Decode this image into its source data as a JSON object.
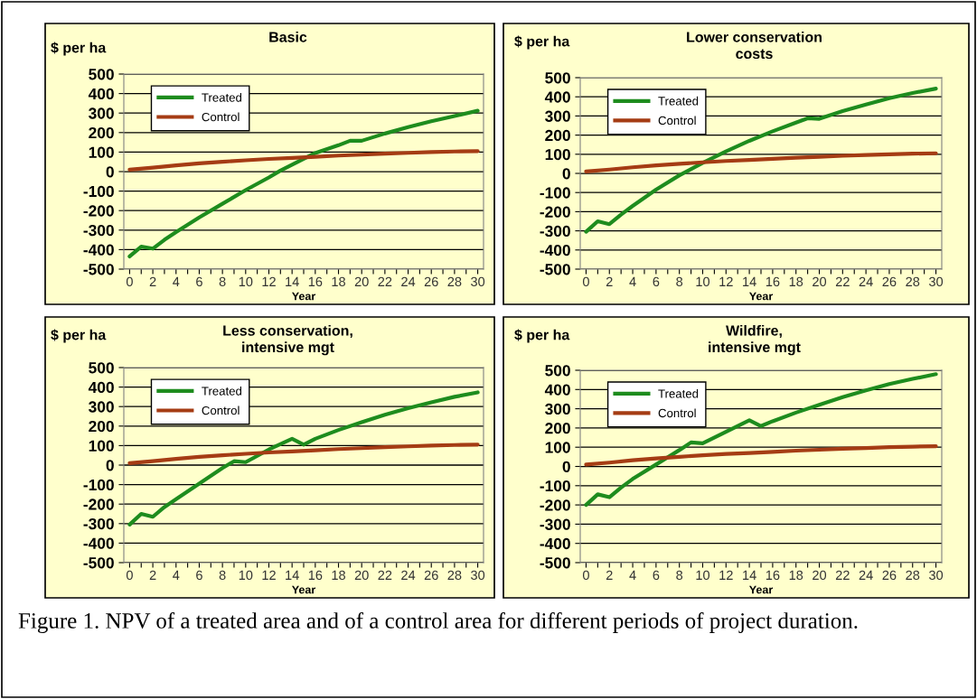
{
  "chart_data": [
    {
      "type": "line",
      "title": "Basic",
      "ylabel": "$ per ha",
      "xlabel": "Year",
      "series": [
        {
          "name": "Treated",
          "color": "#1e8c1e",
          "x": [
            0,
            1,
            2,
            3,
            4,
            6,
            8,
            10,
            12,
            13,
            14,
            16,
            18,
            19,
            20,
            22,
            24,
            26,
            28,
            30
          ],
          "values": [
            -435,
            -385,
            -395,
            -350,
            -310,
            -235,
            -165,
            -95,
            -30,
            5,
            35,
            95,
            135,
            158,
            158,
            195,
            228,
            258,
            285,
            312
          ]
        },
        {
          "name": "Control",
          "color": "#a53c14",
          "x": [
            0,
            2,
            4,
            6,
            8,
            10,
            12,
            14,
            16,
            18,
            20,
            22,
            24,
            26,
            28,
            30
          ],
          "values": [
            10,
            20,
            32,
            42,
            50,
            58,
            65,
            70,
            76,
            82,
            87,
            92,
            96,
            100,
            103,
            105
          ]
        }
      ],
      "xlim": [
        -0.5,
        30.5
      ],
      "xticks": [
        0,
        {
          "value": 1,
          "label": null
        },
        2,
        {
          "value": 3,
          "label": null
        },
        4,
        {
          "value": 5,
          "label": null
        },
        6,
        {
          "value": 7,
          "label": null
        },
        8,
        {
          "value": 9,
          "label": null
        },
        10,
        {
          "value": 11,
          "label": null
        },
        12,
        {
          "value": 13,
          "label": null
        },
        14,
        {
          "value": 15,
          "label": null
        },
        16,
        {
          "value": 17,
          "label": null
        },
        18,
        {
          "value": 19,
          "label": null
        },
        20,
        {
          "value": 21,
          "label": null
        },
        22,
        {
          "value": 23,
          "label": null
        },
        24,
        {
          "value": 25,
          "label": null
        },
        26,
        {
          "value": 27,
          "label": null
        },
        28,
        {
          "value": 29,
          "label": null
        },
        30
      ],
      "ylim": [
        -500,
        500
      ],
      "yticks": [
        -500,
        -400,
        -300,
        -200,
        -100,
        0,
        100,
        200,
        300,
        400,
        500
      ],
      "grid": "y",
      "legend": "top left",
      "line_style": "solid"
    },
    {
      "type": "line",
      "title": "Lower conservation\ncosts",
      "ylabel": "$ per ha",
      "xlabel": "Year",
      "series": [
        {
          "name": "Treated",
          "color": "#1e8c1e",
          "x": [
            0,
            1,
            2,
            3,
            4,
            6,
            8,
            10,
            12,
            14,
            16,
            18,
            19,
            20,
            22,
            24,
            26,
            28,
            30
          ],
          "values": [
            -305,
            -250,
            -265,
            -215,
            -170,
            -85,
            -10,
            55,
            115,
            170,
            220,
            265,
            288,
            285,
            325,
            360,
            393,
            420,
            443
          ]
        },
        {
          "name": "Control",
          "color": "#a53c14",
          "x": [
            0,
            2,
            4,
            6,
            8,
            10,
            12,
            14,
            16,
            18,
            20,
            22,
            24,
            26,
            28,
            30
          ],
          "values": [
            10,
            20,
            32,
            42,
            50,
            58,
            65,
            70,
            76,
            82,
            87,
            92,
            96,
            100,
            103,
            105
          ]
        }
      ],
      "xlim": [
        -0.5,
        30.5
      ],
      "xticks": [
        0,
        {
          "value": 1,
          "label": null
        },
        2,
        {
          "value": 3,
          "label": null
        },
        4,
        {
          "value": 5,
          "label": null
        },
        6,
        {
          "value": 7,
          "label": null
        },
        8,
        {
          "value": 9,
          "label": null
        },
        10,
        {
          "value": 11,
          "label": null
        },
        12,
        {
          "value": 13,
          "label": null
        },
        14,
        {
          "value": 15,
          "label": null
        },
        16,
        {
          "value": 17,
          "label": null
        },
        18,
        {
          "value": 19,
          "label": null
        },
        20,
        {
          "value": 21,
          "label": null
        },
        22,
        {
          "value": 23,
          "label": null
        },
        24,
        {
          "value": 25,
          "label": null
        },
        26,
        {
          "value": 27,
          "label": null
        },
        28,
        {
          "value": 29,
          "label": null
        },
        30
      ],
      "ylim": [
        -500,
        500
      ],
      "yticks": [
        -500,
        -400,
        -300,
        -200,
        -100,
        0,
        100,
        200,
        300,
        400,
        500
      ],
      "grid": "y",
      "legend": "top left",
      "line_style": "solid"
    },
    {
      "type": "line",
      "title": "Less conservation,\nintensive mgt",
      "ylabel": "$ per ha",
      "xlabel": "Year",
      "series": [
        {
          "name": "Treated",
          "color": "#1e8c1e",
          "x": [
            0,
            1,
            2,
            3,
            4,
            6,
            8,
            9,
            10,
            12,
            14,
            15,
            16,
            18,
            20,
            22,
            24,
            26,
            28,
            30
          ],
          "values": [
            -305,
            -250,
            -265,
            -215,
            -175,
            -95,
            -15,
            20,
            15,
            80,
            135,
            105,
            135,
            180,
            220,
            258,
            292,
            322,
            350,
            373
          ]
        },
        {
          "name": "Control",
          "color": "#a53c14",
          "x": [
            0,
            2,
            4,
            6,
            8,
            10,
            12,
            14,
            16,
            18,
            20,
            22,
            24,
            26,
            28,
            30
          ],
          "values": [
            10,
            20,
            32,
            42,
            50,
            58,
            65,
            70,
            76,
            82,
            87,
            92,
            96,
            100,
            103,
            105
          ]
        }
      ],
      "xlim": [
        -0.5,
        30.5
      ],
      "xticks": [
        0,
        {
          "value": 1,
          "label": null
        },
        2,
        {
          "value": 3,
          "label": null
        },
        4,
        {
          "value": 5,
          "label": null
        },
        6,
        {
          "value": 7,
          "label": null
        },
        8,
        {
          "value": 9,
          "label": null
        },
        10,
        {
          "value": 11,
          "label": null
        },
        12,
        {
          "value": 13,
          "label": null
        },
        14,
        {
          "value": 15,
          "label": null
        },
        16,
        {
          "value": 17,
          "label": null
        },
        18,
        {
          "value": 19,
          "label": null
        },
        20,
        {
          "value": 21,
          "label": null
        },
        22,
        {
          "value": 23,
          "label": null
        },
        24,
        {
          "value": 25,
          "label": null
        },
        26,
        {
          "value": 27,
          "label": null
        },
        28,
        {
          "value": 29,
          "label": null
        },
        30
      ],
      "ylim": [
        -500,
        500
      ],
      "yticks": [
        -500,
        -400,
        -300,
        -200,
        -100,
        0,
        100,
        200,
        300,
        400,
        500
      ],
      "grid": "y",
      "legend": "top left",
      "line_style": "solid"
    },
    {
      "type": "line",
      "title": "Wildfire,\nintensive mgt",
      "ylabel": "$ per ha",
      "xlabel": "Year",
      "series": [
        {
          "name": "Treated",
          "color": "#1e8c1e",
          "x": [
            0,
            1,
            2,
            3,
            4,
            6,
            8,
            9,
            10,
            12,
            14,
            15,
            16,
            18,
            20,
            22,
            24,
            26,
            28,
            30
          ],
          "values": [
            -200,
            -145,
            -160,
            -110,
            -65,
            10,
            85,
            125,
            120,
            180,
            240,
            210,
            235,
            280,
            320,
            360,
            395,
            428,
            455,
            480
          ]
        },
        {
          "name": "Control",
          "color": "#a53c14",
          "x": [
            0,
            2,
            4,
            6,
            8,
            10,
            12,
            14,
            16,
            18,
            20,
            22,
            24,
            26,
            28,
            30
          ],
          "values": [
            10,
            20,
            32,
            42,
            50,
            58,
            65,
            70,
            76,
            82,
            87,
            92,
            96,
            100,
            103,
            105
          ]
        }
      ],
      "xlim": [
        -0.5,
        30.5
      ],
      "xticks": [
        0,
        {
          "value": 1,
          "label": null
        },
        2,
        {
          "value": 3,
          "label": null
        },
        4,
        {
          "value": 5,
          "label": null
        },
        6,
        {
          "value": 7,
          "label": null
        },
        8,
        {
          "value": 9,
          "label": null
        },
        10,
        {
          "value": 11,
          "label": null
        },
        12,
        {
          "value": 13,
          "label": null
        },
        14,
        {
          "value": 15,
          "label": null
        },
        16,
        {
          "value": 17,
          "label": null
        },
        18,
        {
          "value": 19,
          "label": null
        },
        20,
        {
          "value": 21,
          "label": null
        },
        22,
        {
          "value": 23,
          "label": null
        },
        24,
        {
          "value": 25,
          "label": null
        },
        26,
        {
          "value": 27,
          "label": null
        },
        28,
        {
          "value": 29,
          "label": null
        },
        30
      ],
      "ylim": [
        -500,
        500
      ],
      "yticks": [
        -500,
        -400,
        -300,
        -200,
        -100,
        0,
        100,
        200,
        300,
        400,
        500
      ],
      "grid": "y",
      "legend": "top left",
      "line_style": "solid",
      "annotations": [
        "Figure 1. NPV of a treated area and of a control area for different periods of project duration."
      ]
    }
  ]
}
